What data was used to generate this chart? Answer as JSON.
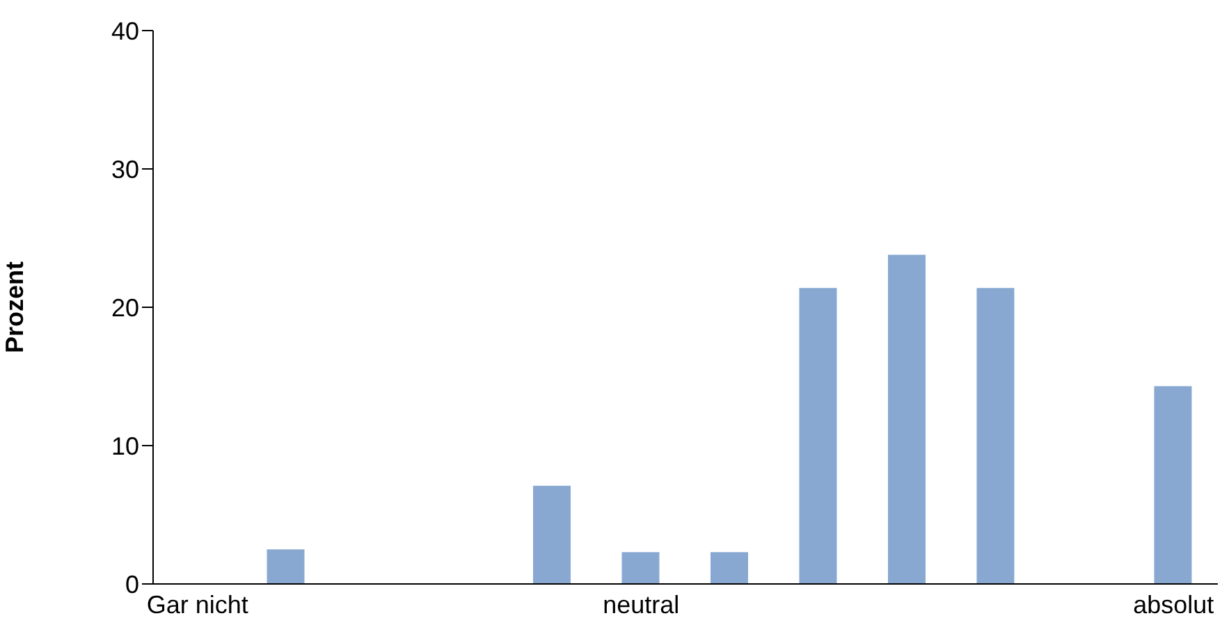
{
  "chart_data": {
    "type": "bar",
    "ylabel": "Prozent",
    "categories": [
      "Gar nicht",
      null,
      null,
      null,
      null,
      "neutral",
      null,
      null,
      null,
      null,
      null,
      "absolut"
    ],
    "values": [
      0,
      2.5,
      0,
      0,
      7.1,
      2.3,
      2.3,
      21.4,
      23.8,
      21.4,
      0,
      14.3
    ],
    "color": "#88a8d2",
    "ylim": [
      0,
      40
    ],
    "yticks": [
      0,
      10,
      20,
      30,
      40
    ],
    "grid": false,
    "legend": false
  }
}
